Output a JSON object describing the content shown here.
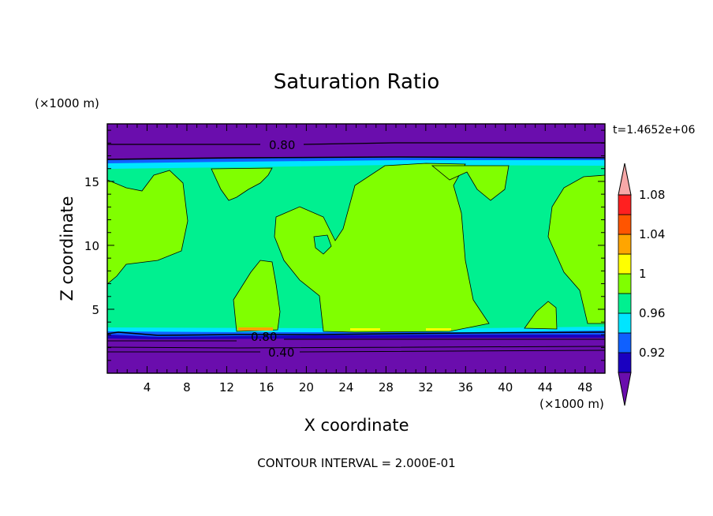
{
  "chart_data": {
    "type": "heatmap",
    "title": "Saturation Ratio",
    "xlabel": "X coordinate",
    "ylabel": "Z coordinate",
    "x_units": "(×1000 m)",
    "z_units": "(×1000 m)",
    "time_label": "t=1.4652e+06",
    "footnote": "CONTOUR INTERVAL = 2.000E-01",
    "xlim": [
      0,
      50
    ],
    "ylim": [
      0,
      19.5
    ],
    "x_ticks": [
      4,
      8,
      12,
      16,
      20,
      24,
      28,
      32,
      36,
      40,
      44,
      48
    ],
    "y_ticks": [
      5,
      10,
      15
    ],
    "contour_line_labels": [
      "0.80",
      "0.80",
      "0.40"
    ],
    "colorbar": {
      "levels": [
        0.92,
        0.96,
        1,
        1.04,
        1.08
      ],
      "level_labels": [
        "0.92",
        "0.96",
        "1",
        "1.04",
        "1.08"
      ],
      "colors": [
        "#6a0dad",
        "#1a00c0",
        "#0f60ff",
        "#00e5ff",
        "#00f090",
        "#80ff00",
        "#ffff00",
        "#ffa500",
        "#ff5500",
        "#ff2020",
        "#f7a8a8"
      ]
    },
    "regions": {
      "upper_dry_band": {
        "z_range": [
          16.9,
          19.5
        ],
        "value": "<0.92"
      },
      "humid_layer": {
        "z_range": [
          3.3,
          16.9
        ],
        "value": "0.98-1.02"
      },
      "lower_dry_band": {
        "z_range": [
          0,
          3.3
        ],
        "value": "<0.92"
      }
    }
  }
}
